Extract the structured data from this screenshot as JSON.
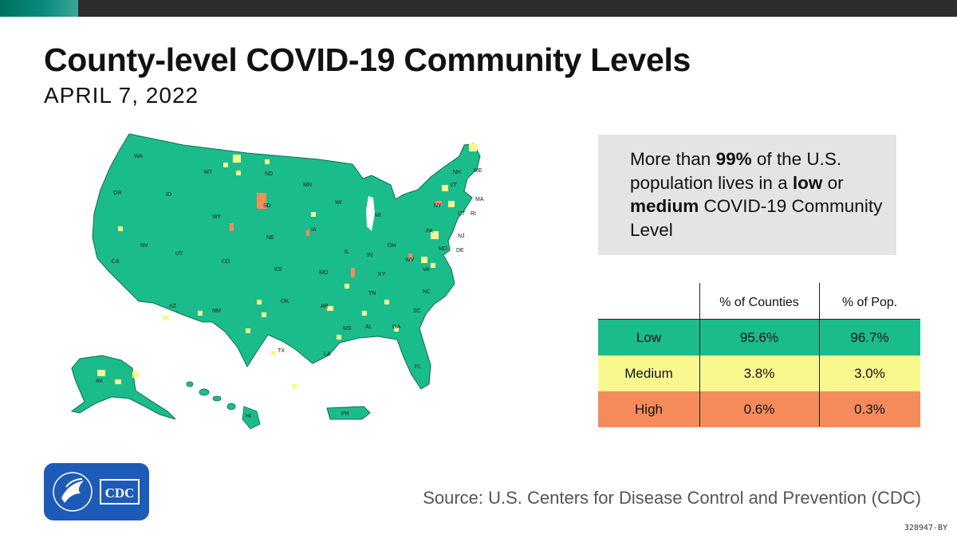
{
  "header": {
    "title": "County-level COVID-19 Community Levels",
    "date": "APRIL 7, 2022"
  },
  "colors": {
    "low": "#1bbc8c",
    "medium": "#f9f88f",
    "high": "#f58b5a",
    "stat_box_bg": "#e4e4e4",
    "logo_bg": "#1d5bb8",
    "top_bar": "#2d2d2d"
  },
  "stat": {
    "prefix": "More than ",
    "bold_pct": "99%",
    "line_rest": " of the U.S. population lives in a ",
    "bold_low": "low",
    "or": " or ",
    "bold_medium": "medium",
    "suffix": " COVID-19 Community Level"
  },
  "table": {
    "columns": [
      "% of Counties",
      "% of Pop."
    ],
    "rows": [
      {
        "level": "Low",
        "counties": "95.6%",
        "pop": "96.7%",
        "color": "#1bbc8c"
      },
      {
        "level": "Medium",
        "counties": "3.8%",
        "pop": "3.0%",
        "color": "#f9f88f"
      },
      {
        "level": "High",
        "counties": "0.6%",
        "pop": "0.3%",
        "color": "#f58b5a"
      }
    ]
  },
  "map": {
    "state_labels": [
      "WA",
      "OR",
      "CA",
      "ID",
      "NV",
      "MT",
      "WY",
      "UT",
      "AZ",
      "CO",
      "NM",
      "ND",
      "SD",
      "NE",
      "KS",
      "OK",
      "TX",
      "MN",
      "IA",
      "MO",
      "AR",
      "LA",
      "WI",
      "IL",
      "MI",
      "IN",
      "OH",
      "KY",
      "TN",
      "MS",
      "AL",
      "GA",
      "FL",
      "SC",
      "NC",
      "VA",
      "WV",
      "PA",
      "NY",
      "ME",
      "NH",
      "VT",
      "MA",
      "RI",
      "CT",
      "NJ",
      "DE",
      "MD",
      "AK",
      "HI",
      "PR"
    ]
  },
  "logo": {
    "text": "CDC"
  },
  "footer": {
    "source": "Source: U.S. Centers for Disease Control and Prevention (CDC)",
    "code": "328947-BY"
  }
}
